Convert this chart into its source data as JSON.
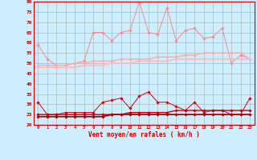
{
  "xlabel": "Vent moyen/en rafales ( km/h )",
  "background_color": "#cceeff",
  "grid_color": "#aabbbb",
  "x": [
    0,
    1,
    2,
    3,
    4,
    5,
    6,
    7,
    8,
    9,
    10,
    11,
    12,
    13,
    14,
    15,
    16,
    17,
    18,
    19,
    20,
    21,
    22,
    23
  ],
  "series": [
    {
      "name": "rafales_volatile",
      "color": "#ff8888",
      "lw": 0.7,
      "values": [
        59,
        52,
        49,
        49,
        50,
        51,
        65,
        65,
        61,
        65,
        66,
        80,
        65,
        64,
        77,
        61,
        66,
        67,
        62,
        63,
        67,
        50,
        54,
        52
      ]
    },
    {
      "name": "rafales_trend_upper",
      "color": "#ffaaaa",
      "lw": 1.0,
      "values": [
        49,
        49,
        49,
        49,
        50,
        50,
        51,
        51,
        51,
        52,
        52,
        52,
        52,
        53,
        53,
        53,
        54,
        54,
        55,
        55,
        55,
        55,
        55,
        52
      ]
    },
    {
      "name": "rafales_trend_lower",
      "color": "#ffbbbb",
      "lw": 1.3,
      "values": [
        48,
        48,
        48,
        48,
        48,
        49,
        49,
        49,
        50,
        50,
        50,
        51,
        51,
        51,
        51,
        52,
        52,
        52,
        52,
        52,
        52,
        52,
        52,
        52
      ]
    },
    {
      "name": "vent_volatile",
      "color": "#dd0000",
      "lw": 0.7,
      "values": [
        31,
        25,
        25,
        26,
        26,
        26,
        26,
        31,
        32,
        33,
        28,
        34,
        36,
        31,
        31,
        29,
        27,
        31,
        26,
        27,
        27,
        25,
        25,
        33
      ]
    },
    {
      "name": "vent_trend_upper",
      "color": "#cc0000",
      "lw": 1.0,
      "values": [
        25,
        25,
        25,
        25,
        25,
        25,
        25,
        25,
        25,
        25,
        26,
        26,
        26,
        26,
        26,
        27,
        27,
        27,
        27,
        27,
        27,
        27,
        27,
        27
      ]
    },
    {
      "name": "vent_trend_lower",
      "color": "#aa0000",
      "lw": 1.3,
      "values": [
        24,
        24,
        24,
        24,
        24,
        24,
        24,
        24,
        25,
        25,
        25,
        25,
        25,
        25,
        25,
        25,
        25,
        25,
        25,
        25,
        25,
        25,
        25,
        25
      ]
    }
  ],
  "ylim": [
    20,
    80
  ],
  "yticks": [
    20,
    25,
    30,
    35,
    40,
    45,
    50,
    55,
    60,
    65,
    70,
    75,
    80
  ],
  "xticks": [
    0,
    1,
    2,
    3,
    4,
    5,
    6,
    7,
    8,
    9,
    10,
    11,
    12,
    13,
    14,
    15,
    16,
    17,
    18,
    19,
    20,
    21,
    22,
    23
  ],
  "tick_color": "#cc0000",
  "label_color": "#cc0000",
  "marker": "D",
  "markersize": 1.8
}
